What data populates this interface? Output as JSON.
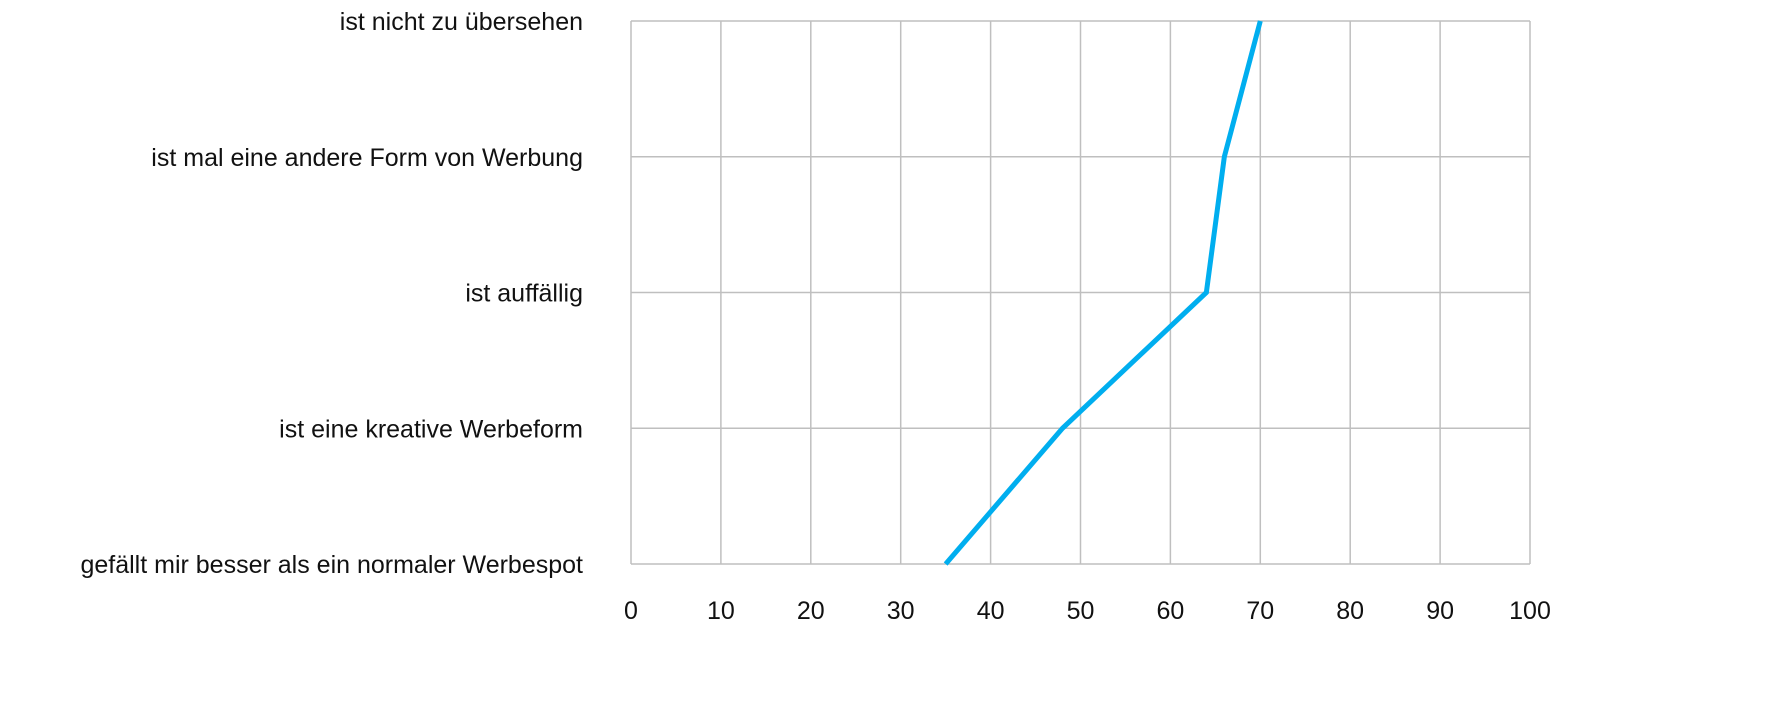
{
  "chart_data": {
    "type": "line",
    "orientation": "horizontal",
    "categories": [
      "ist nicht zu übersehen",
      "ist mal eine andere Form von Werbung",
      "ist auffällig",
      "ist eine kreative Werbeform",
      "gefällt mir besser als ein normaler Werbespot"
    ],
    "series": [
      {
        "values": [
          70,
          66,
          64,
          48,
          35
        ],
        "color": "#00AEEF"
      }
    ],
    "xlim": [
      0,
      100
    ],
    "xticks": [
      "0",
      "10",
      "20",
      "30",
      "40",
      "50",
      "60",
      "70",
      "80",
      "90",
      "100"
    ],
    "grid": true,
    "legend": "none",
    "title": "",
    "xlabel": "",
    "ylabel": ""
  }
}
